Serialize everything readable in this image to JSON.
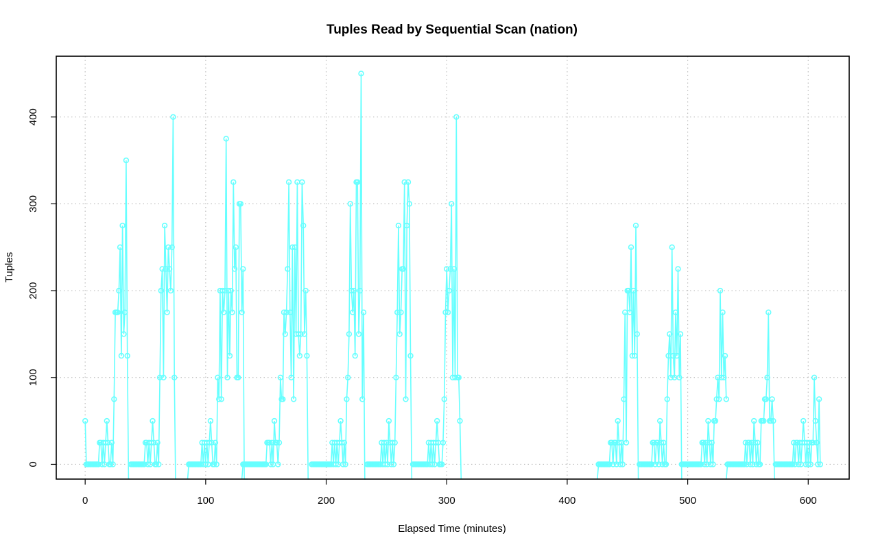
{
  "chart_data": {
    "type": "line",
    "title": "Tuples Read by Sequential Scan (nation)",
    "xlabel": "Elapsed Time (minutes)",
    "ylabel": "Tuples",
    "xlim": [
      -24,
      634
    ],
    "ylim": [
      -17,
      470
    ],
    "xticks": [
      0,
      100,
      200,
      300,
      400,
      500,
      600
    ],
    "yticks": [
      0,
      100,
      200,
      300,
      400
    ],
    "grid": true,
    "color": "#66ffff",
    "series": [
      {
        "segments": [
          {
            "x": [
              0,
              1,
              2,
              3,
              4,
              5,
              6,
              7,
              8,
              9,
              10,
              11,
              12,
              13,
              14,
              15,
              16,
              17,
              18,
              19,
              20,
              21,
              22,
              23,
              24,
              25,
              26,
              27,
              28,
              29,
              30,
              31,
              32,
              33,
              34,
              35,
              36
            ],
            "y": [
              50,
              0,
              0,
              0,
              0,
              0,
              0,
              0,
              0,
              0,
              0,
              0,
              25,
              25,
              0,
              25,
              0,
              25,
              50,
              25,
              0,
              0,
              25,
              0,
              75,
              175,
              175,
              175,
              200,
              250,
              125,
              275,
              150,
              175,
              350,
              125,
              -20
            ]
          },
          {
            "x": [
              38,
              39,
              40,
              41,
              42,
              43,
              44,
              45,
              46,
              47,
              48,
              49,
              50,
              51,
              52,
              53,
              54,
              55,
              56,
              57,
              58,
              59,
              60,
              61,
              62,
              63,
              64,
              65,
              66,
              67,
              68,
              69,
              70,
              71,
              72,
              73,
              74,
              75
            ],
            "y": [
              0,
              0,
              0,
              0,
              0,
              0,
              0,
              0,
              0,
              0,
              0,
              0,
              25,
              25,
              0,
              25,
              0,
              25,
              50,
              25,
              0,
              0,
              25,
              0,
              100,
              200,
              225,
              100,
              275,
              225,
              175,
              250,
              225,
              200,
              250,
              400,
              100,
              -20
            ]
          },
          {
            "x": [
              85,
              86,
              87,
              88,
              89,
              90,
              91,
              92,
              93,
              94,
              95,
              96,
              97,
              98,
              99,
              100,
              101,
              102,
              103,
              104,
              105,
              106,
              107,
              108,
              109,
              110,
              111,
              112,
              113,
              114,
              115,
              116,
              117,
              118,
              119,
              120,
              121,
              122,
              123,
              124,
              125,
              126,
              127,
              128,
              129,
              130,
              131,
              132,
              133,
              134,
              135
            ],
            "y": [
              -20,
              0,
              0,
              0,
              0,
              0,
              0,
              0,
              0,
              0,
              0,
              0,
              25,
              0,
              25,
              0,
              25,
              0,
              25,
              50,
              25,
              0,
              0,
              25,
              0,
              100,
              75,
              200,
              75,
              200,
              175,
              200,
              375,
              100,
              200,
              125,
              200,
              175,
              325,
              225,
              250,
              100,
              100,
              300,
              300,
              175,
              225,
              -20,
              -20,
              -20,
              -20
            ]
          },
          {
            "x": [
              130,
              131,
              132,
              133,
              134,
              135,
              136,
              137,
              138,
              139,
              140,
              141,
              142,
              143,
              144,
              145,
              146,
              147,
              148,
              149,
              150,
              151,
              152,
              153,
              154,
              155,
              156,
              157,
              158,
              159,
              160,
              161,
              162,
              163,
              164,
              165,
              166,
              167,
              168,
              169,
              170,
              171,
              172,
              173,
              174,
              175,
              176,
              177,
              178,
              179,
              180,
              181,
              182,
              183,
              184,
              185,
              186
            ],
            "y": [
              -20,
              0,
              0,
              0,
              0,
              0,
              0,
              0,
              0,
              0,
              0,
              0,
              0,
              0,
              0,
              0,
              0,
              0,
              0,
              0,
              0,
              25,
              25,
              25,
              0,
              25,
              0,
              50,
              25,
              25,
              0,
              25,
              100,
              75,
              75,
              175,
              150,
              175,
              225,
              325,
              175,
              100,
              250,
              75,
              250,
              150,
              325,
              150,
              125,
              150,
              325,
              275,
              150,
              200,
              125,
              -20,
              -20
            ]
          },
          {
            "x": [
              188,
              189,
              190,
              191,
              192,
              193,
              194,
              195,
              196,
              197,
              198,
              199,
              200,
              201,
              202,
              203,
              204,
              205,
              206,
              207,
              208,
              209,
              210,
              211,
              212,
              213,
              214,
              215,
              216,
              217,
              218,
              219,
              220,
              221,
              222,
              223,
              224,
              225,
              226,
              227,
              228,
              229,
              230,
              231,
              232,
              233
            ],
            "y": [
              0,
              0,
              0,
              0,
              0,
              0,
              0,
              0,
              0,
              0,
              0,
              0,
              0,
              0,
              0,
              0,
              0,
              25,
              0,
              25,
              0,
              25,
              0,
              25,
              50,
              25,
              0,
              25,
              0,
              75,
              100,
              150,
              300,
              200,
              175,
              200,
              125,
              325,
              325,
              150,
              200,
              450,
              75,
              175,
              -20,
              -20
            ]
          },
          {
            "x": [
              234,
              235,
              236,
              237,
              238,
              239,
              240,
              241,
              242,
              243,
              244,
              245,
              246,
              247,
              248,
              249,
              250,
              251,
              252,
              253,
              254,
              255,
              256,
              257,
              258,
              259,
              260,
              261,
              262,
              263,
              264,
              265,
              266,
              267,
              268,
              269,
              270,
              271
            ],
            "y": [
              0,
              0,
              0,
              0,
              0,
              0,
              0,
              0,
              0,
              0,
              0,
              0,
              25,
              0,
              25,
              0,
              25,
              0,
              50,
              25,
              0,
              25,
              0,
              25,
              100,
              175,
              275,
              150,
              175,
              225,
              225,
              325,
              75,
              275,
              325,
              300,
              125,
              -20
            ]
          },
          {
            "x": [
              272,
              273,
              274,
              275,
              276,
              277,
              278,
              279,
              280,
              281,
              282,
              283,
              284,
              285,
              286,
              287,
              288,
              289,
              290,
              291,
              292,
              293,
              294,
              295,
              296,
              297,
              298,
              299,
              300,
              301,
              302,
              303,
              304,
              305,
              306,
              307,
              308,
              309,
              310,
              311,
              312
            ],
            "y": [
              0,
              0,
              0,
              0,
              0,
              0,
              0,
              0,
              0,
              0,
              0,
              0,
              0,
              25,
              0,
              25,
              0,
              25,
              0,
              25,
              50,
              25,
              0,
              0,
              0,
              25,
              75,
              175,
              225,
              175,
              200,
              225,
              300,
              100,
              225,
              100,
              400,
              100,
              100,
              50,
              -20
            ]
          },
          {
            "x": [
              425,
              426,
              427,
              428,
              429,
              430,
              431,
              432,
              433,
              434,
              435,
              436,
              437,
              438,
              439,
              440,
              441,
              442,
              443,
              444,
              445,
              446,
              447,
              448,
              449,
              450,
              451,
              452,
              453,
              454,
              455,
              456,
              457,
              458,
              459,
              460
            ],
            "y": [
              -20,
              0,
              0,
              0,
              0,
              0,
              0,
              0,
              0,
              0,
              0,
              25,
              25,
              0,
              25,
              25,
              0,
              50,
              25,
              0,
              25,
              0,
              75,
              175,
              25,
              200,
              200,
              175,
              250,
              125,
              200,
              125,
              275,
              150,
              -20,
              -20
            ]
          },
          {
            "x": [
              460,
              461,
              462,
              463,
              464,
              465,
              466,
              467,
              468,
              469,
              470,
              471,
              472,
              473,
              474,
              475,
              476,
              477,
              478,
              479,
              480,
              481,
              482,
              483,
              484,
              485,
              486,
              487,
              488,
              489,
              490,
              491,
              492,
              493,
              494,
              495,
              496
            ],
            "y": [
              0,
              0,
              0,
              0,
              0,
              0,
              0,
              0,
              0,
              0,
              0,
              25,
              25,
              0,
              25,
              25,
              0,
              50,
              25,
              0,
              25,
              0,
              0,
              75,
              125,
              150,
              100,
              250,
              125,
              100,
              175,
              125,
              225,
              100,
              150,
              -20,
              -20
            ]
          },
          {
            "x": [
              495,
              496,
              497,
              498,
              499,
              500,
              501,
              502,
              503,
              504,
              505,
              506,
              507,
              508,
              509,
              510,
              511,
              512,
              513,
              514,
              515,
              516,
              517,
              518,
              519,
              520,
              521,
              522,
              523,
              524,
              525,
              526,
              527,
              528,
              529,
              530,
              531,
              532
            ],
            "y": [
              0,
              0,
              0,
              0,
              0,
              0,
              0,
              0,
              0,
              0,
              0,
              0,
              0,
              0,
              0,
              0,
              0,
              25,
              25,
              0,
              25,
              0,
              50,
              25,
              0,
              25,
              0,
              50,
              50,
              75,
              100,
              75,
              200,
              100,
              175,
              100,
              125,
              75
            ]
          },
          {
            "x": [
              532,
              533,
              534,
              535,
              536,
              537,
              538,
              539,
              540,
              541,
              542,
              543,
              544,
              545,
              546,
              547,
              548,
              549,
              550,
              551,
              552,
              553,
              554,
              555,
              556,
              557,
              558,
              559,
              560,
              561,
              562,
              563,
              564,
              565,
              566,
              567,
              568,
              569,
              570,
              571,
              572,
              573
            ],
            "y": [
              -20,
              0,
              0,
              0,
              0,
              0,
              0,
              0,
              0,
              0,
              0,
              0,
              0,
              0,
              0,
              0,
              25,
              0,
              25,
              25,
              0,
              25,
              0,
              50,
              25,
              0,
              25,
              0,
              0,
              50,
              50,
              50,
              75,
              75,
              100,
              175,
              50,
              50,
              75,
              50,
              -20,
              -20
            ]
          },
          {
            "x": [
              573,
              574,
              575,
              576,
              577,
              578,
              579,
              580,
              581,
              582,
              583,
              584,
              585,
              586,
              587,
              588,
              589,
              590,
              591,
              592,
              593,
              594,
              595,
              596,
              597,
              598,
              599,
              600,
              601,
              602,
              603,
              604,
              605,
              606,
              607,
              608,
              609,
              610
            ],
            "y": [
              0,
              0,
              0,
              0,
              0,
              0,
              0,
              0,
              0,
              0,
              0,
              0,
              0,
              0,
              0,
              25,
              0,
              25,
              25,
              0,
              25,
              0,
              25,
              50,
              25,
              0,
              25,
              0,
              25,
              0,
              25,
              25,
              100,
              50,
              25,
              0,
              75,
              0
            ]
          }
        ]
      }
    ]
  }
}
